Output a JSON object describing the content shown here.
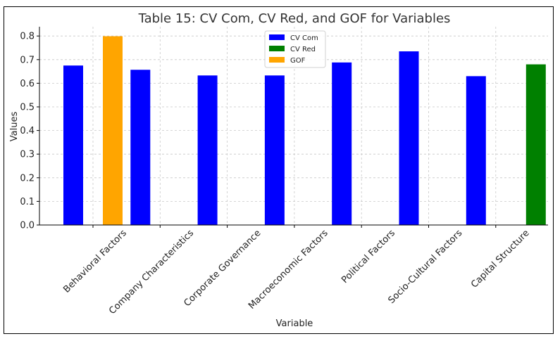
{
  "chart_data": {
    "type": "bar",
    "title": "Table 15: CV Com, CV Red, and GOF for Variables",
    "xlabel": "Variable",
    "ylabel": "Values",
    "ylim": [
      0,
      0.84
    ],
    "yticks": [
      "0.0",
      "0.1",
      "0.2",
      "0.3",
      "0.4",
      "0.5",
      "0.6",
      "0.7",
      "0.8"
    ],
    "grid": true,
    "legend_position": "top-center",
    "categories": [
      "Behavioral Factors",
      "Company Characteristics",
      "Corporate Governance",
      "Macroeconomic Factors",
      "Political Factors",
      "Socio-Cultural Factors",
      "Capital Structure"
    ],
    "series": [
      {
        "name": "CV Com",
        "color": "#0000ff",
        "values": [
          0.675,
          0.657,
          0.633,
          0.633,
          0.688,
          0.735,
          0.63
        ]
      },
      {
        "name": "CV Red",
        "color": "#008000",
        "values": [
          null,
          null,
          null,
          null,
          null,
          null,
          0.68
        ]
      },
      {
        "name": "GOF",
        "color": "#ffa500",
        "values": [
          0.799,
          null,
          null,
          null,
          null,
          null,
          null
        ]
      }
    ]
  }
}
